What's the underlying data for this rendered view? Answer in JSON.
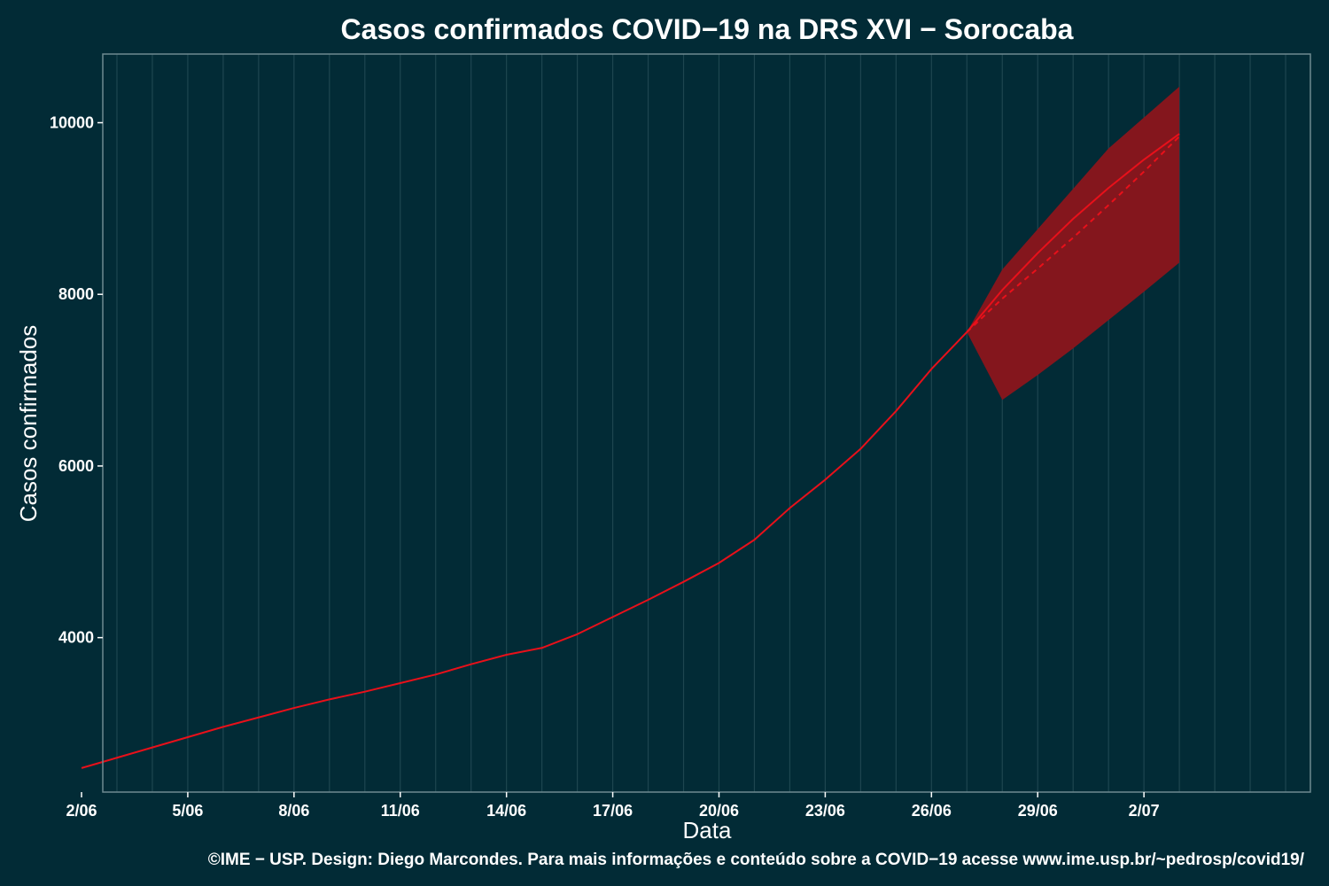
{
  "chart_data": {
    "type": "line",
    "title": "Casos confirmados COVID−19 na DRS XVI − Sorocaba",
    "xlabel": "Data",
    "ylabel": "Casos confirmados",
    "caption": "©IME − USP. Design: Diego Marcondes. Para mais informações e conteúdo sobre a COVID−19 acesse www.ime.usp.br/~pedrosp/covid19/",
    "x_tick_labels": [
      "2/06",
      "5/06",
      "8/06",
      "11/06",
      "14/06",
      "17/06",
      "20/06",
      "23/06",
      "26/06",
      "29/06",
      "2/07"
    ],
    "y_tick_labels": [
      "4000",
      "6000",
      "8000",
      "10000"
    ],
    "y_ticks": [
      4000,
      6000,
      8000,
      10000
    ],
    "ylim": [
      2200,
      10800
    ],
    "xlim_days": [
      2.6,
      36.7
    ],
    "grid": true,
    "colors": {
      "background": "#022b36",
      "line": "#e8101a",
      "band": "#84161d",
      "grid": "#1e4650",
      "frame": "#6e8a90"
    },
    "series": [
      {
        "style": "solid",
        "x": [
          "2/06",
          "3/06",
          "4/06",
          "5/06",
          "6/06",
          "7/06",
          "8/06",
          "9/06",
          "10/06",
          "11/06",
          "12/06",
          "13/06",
          "14/06",
          "15/06",
          "16/06",
          "17/06",
          "18/06",
          "19/06",
          "20/06",
          "21/06",
          "22/06",
          "23/06",
          "24/06",
          "25/06",
          "26/06",
          "27/06",
          "28/06",
          "29/06",
          "30/06",
          "1/07",
          "2/07",
          "3/07"
        ],
        "y": [
          2480,
          2600,
          2720,
          2840,
          2960,
          3070,
          3180,
          3280,
          3370,
          3470,
          3570,
          3690,
          3800,
          3880,
          4040,
          4240,
          4440,
          4650,
          4870,
          5140,
          5510,
          5840,
          6200,
          6640,
          7130,
          7560,
          8050,
          8480,
          8880,
          9240,
          9570,
          9870
        ]
      },
      {
        "style": "dashed",
        "x": [
          "27/06",
          "28/06",
          "29/06",
          "30/06",
          "1/07",
          "2/07",
          "3/07"
        ],
        "y": [
          7560,
          7950,
          8300,
          8660,
          9040,
          9430,
          9840
        ]
      }
    ],
    "band": {
      "x": [
        "27/06",
        "28/06",
        "29/06",
        "30/06",
        "1/07",
        "2/07",
        "3/07"
      ],
      "lower": [
        7560,
        6770,
        7060,
        7370,
        7700,
        8030,
        8370
      ],
      "upper": [
        7560,
        8290,
        8760,
        9230,
        9700,
        10060,
        10420
      ]
    }
  }
}
